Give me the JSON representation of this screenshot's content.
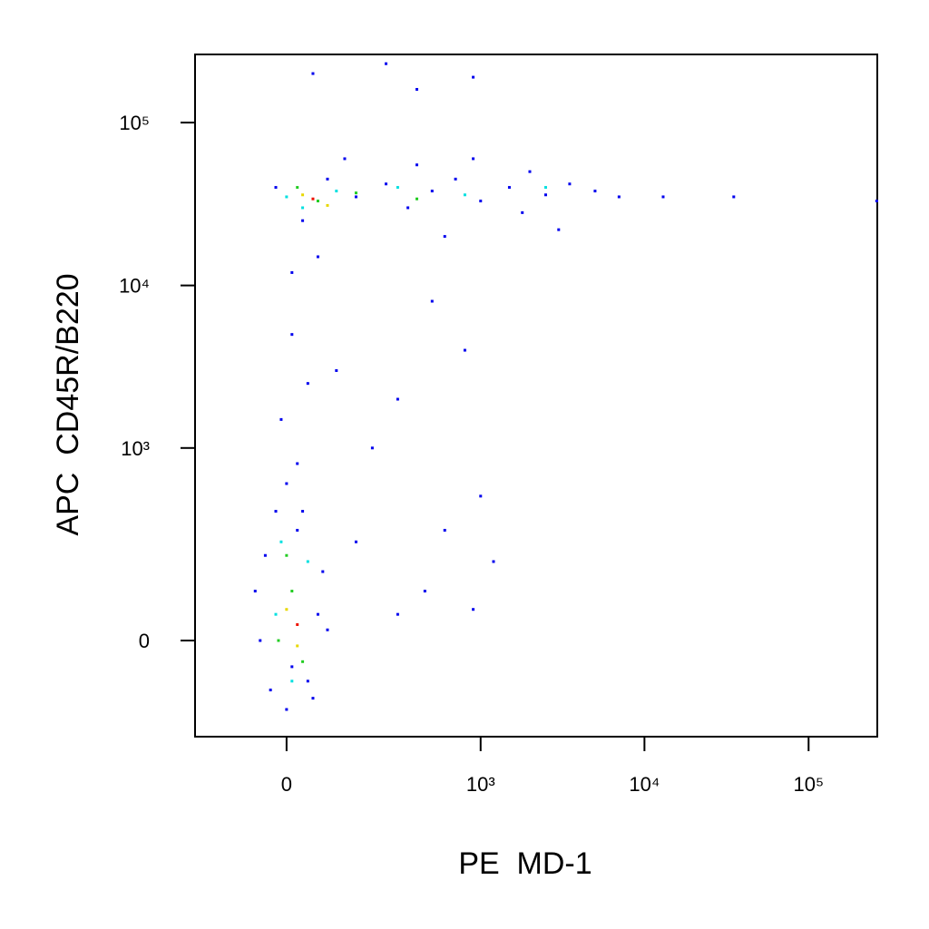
{
  "chart_data": {
    "type": "scatter",
    "x_label": "PE  MD-1",
    "y_label": "APC  CD45R/B220",
    "xscale": "biexponential",
    "yscale": "biexponential",
    "xlim": [
      -220,
      262144
    ],
    "ylim": [
      -240,
      262144
    ],
    "xticks": [
      0,
      {
        "value": 1000,
        "label": "10³"
      },
      {
        "value": 10000,
        "label": "10⁴"
      },
      {
        "value": 100000,
        "label": "10⁵"
      }
    ],
    "yticks": [
      0,
      {
        "value": 1000,
        "label": "10³"
      },
      {
        "value": 10000,
        "label": "10⁴"
      },
      {
        "value": 100000,
        "label": "10⁵"
      }
    ],
    "series": [
      {
        "color": "#0000ee",
        "x": [
          -20,
          30,
          80,
          150,
          250,
          350,
          500,
          700,
          1000,
          1500,
          2000,
          2500,
          3500,
          5000,
          7000,
          13000,
          35000,
          260000,
          60,
          10,
          120,
          400,
          900,
          1800,
          3000,
          600,
          10,
          40,
          -10,
          20,
          100,
          300,
          200,
          1000,
          500,
          800,
          30,
          600,
          1200,
          150,
          450,
          900,
          300,
          50,
          250,
          900,
          400,
          -50,
          -30,
          0,
          40,
          60,
          70,
          -40,
          20,
          -60,
          10,
          50,
          80,
          -20,
          0
        ],
        "y": [
          40000,
          25000,
          45000,
          35000,
          42000,
          30000,
          38000,
          45000,
          33000,
          40000,
          50000,
          36000,
          42000,
          38000,
          35000,
          35000,
          35000,
          33000,
          15000,
          12000,
          60000,
          55000,
          60000,
          28000,
          22000,
          20000,
          5000,
          2500,
          1500,
          800,
          3000,
          2000,
          1000,
          500,
          8000,
          4000,
          400,
          300,
          180,
          250,
          100,
          60,
          50,
          200000,
          230000,
          190000,
          160000,
          0,
          -100,
          -150,
          -80,
          50,
          150,
          200,
          300,
          100,
          -50,
          -120,
          20,
          400,
          600
        ]
      },
      {
        "color": "#00e0e0",
        "x": [
          0,
          100,
          300,
          800,
          2500,
          30,
          -20,
          40,
          10,
          -10
        ],
        "y": [
          35000,
          38000,
          40000,
          36000,
          40000,
          30000,
          50,
          180,
          -80,
          250
        ]
      },
      {
        "color": "#22cc22",
        "x": [
          20,
          60,
          150,
          400,
          10,
          -15,
          30,
          0
        ],
        "y": [
          40000,
          33000,
          37000,
          34000,
          100,
          0,
          -40,
          200
        ]
      },
      {
        "color": "#e8d800",
        "x": [
          30,
          80,
          0,
          20
        ],
        "y": [
          36000,
          31000,
          60,
          -10
        ]
      },
      {
        "color": "#ee1100",
        "x": [
          50,
          20
        ],
        "y": [
          34000,
          30
        ]
      }
    ]
  }
}
